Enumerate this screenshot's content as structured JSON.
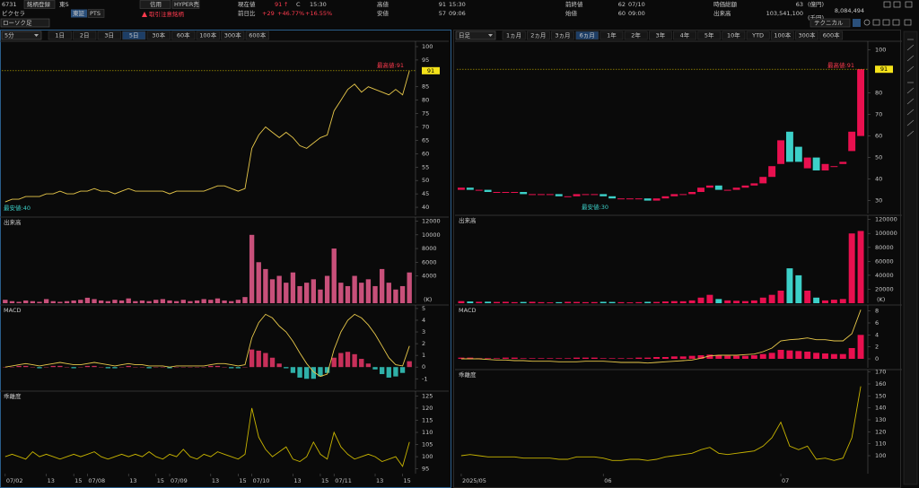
{
  "header": {
    "code": "6731",
    "register": "銘柄登録",
    "market": "東S",
    "tabs": [
      "東証",
      "PTS"
    ],
    "name": "ピクセラ",
    "chart_style": "ローソク足",
    "badges": [
      "信用",
      "HYPER売"
    ],
    "warning": "取引注意銘柄",
    "price": {
      "label": "現在値",
      "value": "91",
      "arrow": "↑",
      "flag": "C",
      "time": "15:30"
    },
    "change": {
      "label": "前日比",
      "value": "+29",
      "pct": "+46.77%",
      "pct2": "+16.55%"
    },
    "high": {
      "label": "高値",
      "value": "91",
      "time": "15:30"
    },
    "low": {
      "label": "安値",
      "value": "57",
      "time": "09:06"
    },
    "prev_close": {
      "label": "前終値",
      "value": "62",
      "date": "07/10"
    },
    "open": {
      "label": "始値",
      "value": "60",
      "time": "09:00"
    },
    "market_cap": {
      "label": "時価総額",
      "value": "63",
      "unit": "(億円)"
    },
    "volume": {
      "label": "出来高",
      "value": "103,541,100",
      "turnover": "8,084,494",
      "unit": "(千円)"
    },
    "technical": "テクニカル"
  },
  "intraday": {
    "period": "5分",
    "buttons": [
      "1日",
      "2日",
      "3日",
      "5日",
      "30本",
      "60本",
      "100本",
      "300本",
      "600本"
    ],
    "active": 3,
    "categories": [
      "07/02",
      null,
      null,
      null,
      null,
      null,
      "13",
      null,
      null,
      null,
      "15",
      null,
      "07/08",
      null,
      null,
      null,
      null,
      null,
      "13",
      null,
      null,
      null,
      "15",
      null,
      "07/09",
      null,
      null,
      null,
      null,
      null,
      "13",
      null,
      null,
      null,
      "15",
      null,
      "07/10",
      null,
      null,
      null,
      null,
      null,
      "13",
      null,
      null,
      null,
      "15",
      null,
      "07/11",
      null,
      null,
      null,
      null,
      null,
      "13",
      null,
      null,
      null,
      "15",
      null
    ],
    "price": {
      "ylim": [
        37,
        102
      ],
      "yticks": [
        40,
        45,
        50,
        55,
        60,
        65,
        70,
        75,
        80,
        85,
        95,
        100
      ],
      "color": "#e8c84a",
      "values": [
        42,
        43,
        43,
        44,
        44,
        44,
        45,
        45,
        46,
        45,
        45,
        46,
        46,
        47,
        46,
        46,
        45,
        46,
        47,
        46,
        46,
        46,
        46,
        46,
        45,
        46,
        46,
        46,
        46,
        46,
        47,
        48,
        48,
        47,
        46,
        47,
        62,
        67,
        70,
        68,
        66,
        68,
        66,
        63,
        62,
        64,
        66,
        67,
        76,
        80,
        84,
        86,
        83,
        85,
        84,
        83,
        82,
        84,
        82,
        91
      ],
      "last_label": "91",
      "high_label": "最高値:91",
      "low_label": "最安値:40"
    },
    "volume": {
      "title": "出来高",
      "unit": "(K)",
      "ylim": [
        0,
        12600
      ],
      "yticks": [
        4000,
        6000,
        8000,
        10000,
        12000
      ],
      "color": "#c8507a",
      "values": [
        500,
        300,
        200,
        400,
        300,
        200,
        600,
        300,
        200,
        300,
        400,
        500,
        800,
        600,
        400,
        300,
        500,
        400,
        700,
        300,
        400,
        300,
        500,
        600,
        400,
        300,
        500,
        300,
        400,
        600,
        500,
        700,
        400,
        300,
        500,
        900,
        10000,
        6000,
        5000,
        3500,
        4000,
        3000,
        4500,
        2500,
        3000,
        3500,
        2000,
        4000,
        8000,
        3000,
        2500,
        4000,
        3000,
        3500,
        2500,
        5000,
        3000,
        2000,
        2500,
        4500
      ]
    },
    "macd": {
      "title": "MACD",
      "ylim": [
        -1.9,
        5.3
      ],
      "yticks": [
        -1,
        0,
        1,
        2,
        3,
        4,
        5
      ],
      "values": [
        0,
        0.1,
        0.2,
        0.3,
        0.2,
        0.1,
        0.2,
        0.3,
        0.4,
        0.3,
        0.2,
        0.2,
        0.3,
        0.4,
        0.3,
        0.2,
        0.1,
        0.2,
        0.3,
        0.2,
        0.2,
        0.1,
        0.1,
        0.1,
        0,
        0.1,
        0.1,
        0.1,
        0.1,
        0.1,
        0.2,
        0.3,
        0.3,
        0.2,
        0.1,
        0.2,
        2.5,
        3.8,
        4.5,
        4.2,
        3.5,
        3.0,
        2.2,
        1.2,
        0.3,
        -0.4,
        -0.8,
        -0.6,
        1.5,
        3.0,
        4.0,
        4.5,
        4.2,
        3.6,
        2.8,
        1.8,
        0.8,
        0.2,
        0.1,
        1.8
      ],
      "hist": [
        0,
        0,
        0.1,
        0.1,
        0,
        -0.1,
        0,
        0.1,
        0.1,
        0,
        -0.1,
        0,
        0.1,
        0.1,
        0,
        -0.1,
        -0.1,
        0,
        0.1,
        0,
        0,
        -0.1,
        0,
        0,
        -0.1,
        0,
        0,
        0,
        0,
        0,
        0.1,
        0.1,
        0,
        -0.1,
        -0.1,
        0,
        1.5,
        1.4,
        1.2,
        0.8,
        0.3,
        -0.1,
        -0.5,
        -0.9,
        -1.0,
        -1.0,
        -0.8,
        -0.5,
        0.8,
        1.2,
        1.3,
        1.1,
        0.7,
        0.3,
        -0.2,
        -0.6,
        -0.9,
        -0.8,
        -0.5,
        0.5
      ]
    },
    "kairi": {
      "title": "乖離度",
      "ylim": [
        93,
        127
      ],
      "yticks": [
        95,
        100,
        105,
        110,
        115,
        120,
        125
      ],
      "values": [
        100,
        101,
        100,
        99,
        102,
        100,
        101,
        100,
        99,
        100,
        101,
        100,
        101,
        102,
        100,
        99,
        100,
        101,
        100,
        101,
        100,
        102,
        100,
        99,
        101,
        100,
        103,
        100,
        99,
        101,
        100,
        102,
        101,
        100,
        99,
        101,
        120,
        108,
        103,
        100,
        102,
        104,
        99,
        98,
        100,
        106,
        101,
        99,
        110,
        104,
        101,
        99,
        100,
        101,
        100,
        98,
        99,
        100,
        96,
        106
      ]
    }
  },
  "daily": {
    "period": "日足",
    "buttons": [
      "1ヵ月",
      "2ヵ月",
      "3ヵ月",
      "6ヵ月",
      "1年",
      "2年",
      "3年",
      "4年",
      "5年",
      "10年",
      "YTD",
      "100本",
      "300本",
      "600本"
    ],
    "active": 3,
    "categories": [
      "2025/05",
      null,
      null,
      null,
      null,
      null,
      null,
      null,
      null,
      null,
      null,
      null,
      null,
      null,
      null,
      null,
      "06",
      null,
      null,
      null,
      null,
      null,
      null,
      null,
      null,
      null,
      null,
      null,
      null,
      null,
      null,
      null,
      null,
      null,
      null,
      null,
      "07",
      null,
      null,
      null,
      null,
      null,
      null,
      null,
      null,
      null
    ],
    "price": {
      "ylim": [
        24,
        104
      ],
      "yticks": [
        30,
        40,
        50,
        60,
        70,
        80,
        100
      ],
      "up_color": "#e8104f",
      "down_color": "#3cd0c8",
      "open": [
        35,
        36,
        35,
        35,
        34,
        34,
        34,
        34,
        33,
        33,
        33,
        33,
        32,
        32,
        33,
        33,
        33,
        32,
        31,
        31,
        31,
        31,
        30,
        31,
        32,
        33,
        33,
        34,
        36,
        37,
        35,
        35,
        36,
        37,
        38,
        41,
        47,
        62,
        55,
        45,
        50,
        44,
        46,
        47,
        53,
        60
      ],
      "close": [
        36,
        35,
        35,
        34,
        34,
        34,
        34,
        33,
        33,
        33,
        33,
        32,
        32,
        33,
        33,
        33,
        32,
        31,
        31,
        31,
        31,
        30,
        31,
        32,
        33,
        33,
        34,
        36,
        37,
        35,
        35,
        36,
        37,
        38,
        41,
        46,
        58,
        48,
        48,
        50,
        44,
        47,
        46,
        48,
        62,
        91
      ],
      "last_label": "91",
      "high_label": "最高値:91",
      "low_label": "最安値:30"
    },
    "volume": {
      "title": "出来高",
      "unit": "(K)",
      "ylim": [
        0,
        126000
      ],
      "yticks": [
        20000,
        40000,
        60000,
        80000,
        100000,
        120000
      ],
      "values": [
        3000,
        2500,
        2000,
        2200,
        1800,
        2000,
        1500,
        1800,
        2000,
        1500,
        1200,
        1500,
        2000,
        1800,
        1500,
        1600,
        2000,
        1800,
        1500,
        1200,
        1500,
        2000,
        1800,
        2500,
        3000,
        2800,
        4000,
        8000,
        12000,
        6000,
        4000,
        3500,
        3000,
        4000,
        8000,
        12000,
        18000,
        50000,
        40000,
        18000,
        8000,
        4000,
        5000,
        6000,
        100000,
        103541
      ]
    },
    "macd": {
      "title": "MACD",
      "ylim": [
        -1.5,
        9
      ],
      "yticks": [
        0,
        2,
        4,
        6,
        8
      ],
      "values": [
        0,
        0,
        0,
        -0.1,
        -0.2,
        -0.2,
        -0.3,
        -0.3,
        -0.4,
        -0.4,
        -0.4,
        -0.5,
        -0.5,
        -0.5,
        -0.4,
        -0.4,
        -0.4,
        -0.5,
        -0.6,
        -0.6,
        -0.6,
        -0.7,
        -0.6,
        -0.5,
        -0.4,
        -0.3,
        -0.2,
        0.1,
        0.5,
        0.6,
        0.6,
        0.6,
        0.7,
        0.8,
        1.2,
        1.8,
        3,
        3.2,
        3.3,
        3.5,
        3.2,
        3.2,
        3.0,
        3.0,
        4.2,
        8.2
      ],
      "hist": [
        0.2,
        0.2,
        0.1,
        0.1,
        0.1,
        0.2,
        0.2,
        0.1,
        0.1,
        0.1,
        0.1,
        0.1,
        0.1,
        0.2,
        0.2,
        0.2,
        0.1,
        0.1,
        0.1,
        0.1,
        0.2,
        0.2,
        0.3,
        0.3,
        0.4,
        0.4,
        0.5,
        0.6,
        0.7,
        0.6,
        0.5,
        0.5,
        0.5,
        0.6,
        0.8,
        1.0,
        1.5,
        1.4,
        1.3,
        1.2,
        1.0,
        0.9,
        0.8,
        0.8,
        1.8,
        4.0
      ]
    },
    "kairi": {
      "title": "乖離度",
      "ylim": [
        85,
        172
      ],
      "yticks": [
        100,
        110,
        120,
        130,
        140,
        150,
        160,
        170
      ],
      "values": [
        100,
        101,
        100,
        99,
        99,
        99,
        99,
        98,
        98,
        98,
        98,
        97,
        97,
        99,
        99,
        99,
        98,
        96,
        96,
        97,
        97,
        96,
        97,
        99,
        100,
        101,
        102,
        105,
        107,
        102,
        101,
        102,
        103,
        104,
        108,
        115,
        128,
        108,
        105,
        108,
        97,
        98,
        96,
        98,
        115,
        158
      ]
    }
  }
}
